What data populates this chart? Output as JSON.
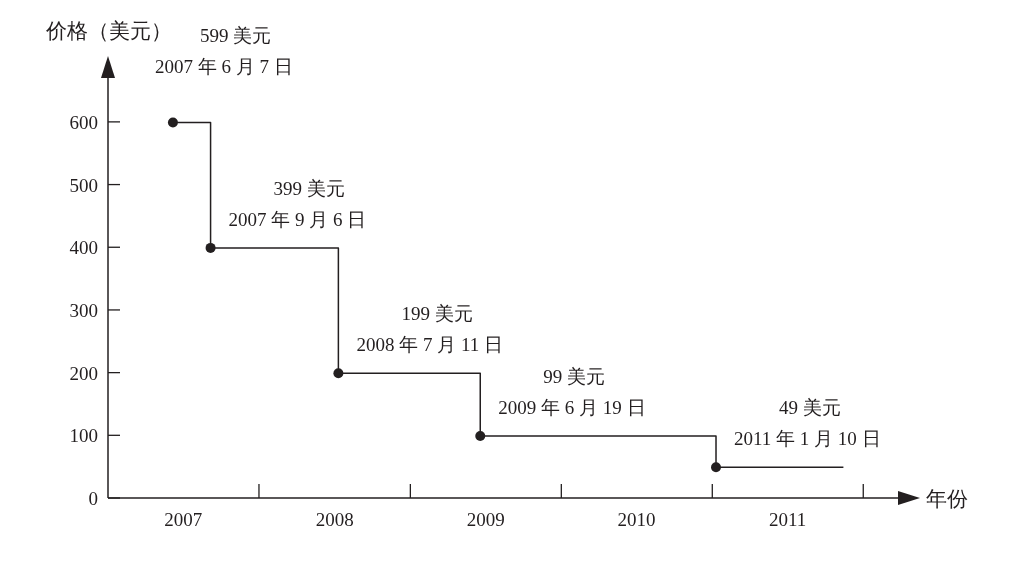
{
  "chart_data": {
    "type": "step",
    "xlabel": "年份",
    "ylabel": "价格（美元）",
    "xlim": [
      "2007-01-01",
      "2012-03-25"
    ],
    "xticks": [
      {
        "value": "2007-07-02",
        "label": "2007"
      },
      {
        "value": "2008-01-01",
        "label": null
      },
      {
        "value": "2008-07-02",
        "label": "2008"
      },
      {
        "value": "2009-01-01",
        "label": null
      },
      {
        "value": "2009-07-02",
        "label": "2009"
      },
      {
        "value": "2010-01-01",
        "label": null
      },
      {
        "value": "2010-07-02",
        "label": "2010"
      },
      {
        "value": "2011-01-01",
        "label": null
      },
      {
        "value": "2011-07-02",
        "label": "2011"
      },
      {
        "value": "2012-01-01",
        "label": null
      }
    ],
    "ylim": [
      0,
      670
    ],
    "yticks": [
      0,
      100,
      200,
      300,
      400,
      500,
      600
    ],
    "series": [
      {
        "type": "step",
        "color": "#231f20",
        "marker": "none",
        "line_style": "solid",
        "x": [
          "2007-06-07",
          "2007-09-06",
          "2008-07-11",
          "2009-06-19",
          "2011-01-10",
          "2011-11-14"
        ],
        "values": [
          599,
          399,
          199,
          99,
          49,
          49
        ]
      },
      {
        "type": "scatter",
        "color": "#231f20",
        "marker": "circle",
        "x": [
          "2007-06-07",
          "2007-09-06",
          "2008-07-11",
          "2009-06-19",
          "2011-01-10"
        ],
        "values": [
          599,
          399,
          199,
          99,
          49
        ]
      }
    ],
    "annotations": [
      {
        "text": "599 美元\n2007 年 6 月 7 日",
        "x": "2007-06-07",
        "y": 599
      },
      {
        "text": "399 美元\n2007 年 9 月 6 日",
        "x": "2007-09-06",
        "y": 399
      },
      {
        "text": "199 美元\n2008 年 7 月 11 日",
        "x": "2008-07-11",
        "y": 199
      },
      {
        "text": "99 美元\n2009 年 6 月 19 日",
        "x": "2009-06-19",
        "y": 99
      },
      {
        "text": "49 美元\n2011 年 1 月 10 日",
        "x": "2011-01-10",
        "y": 49
      }
    ]
  }
}
